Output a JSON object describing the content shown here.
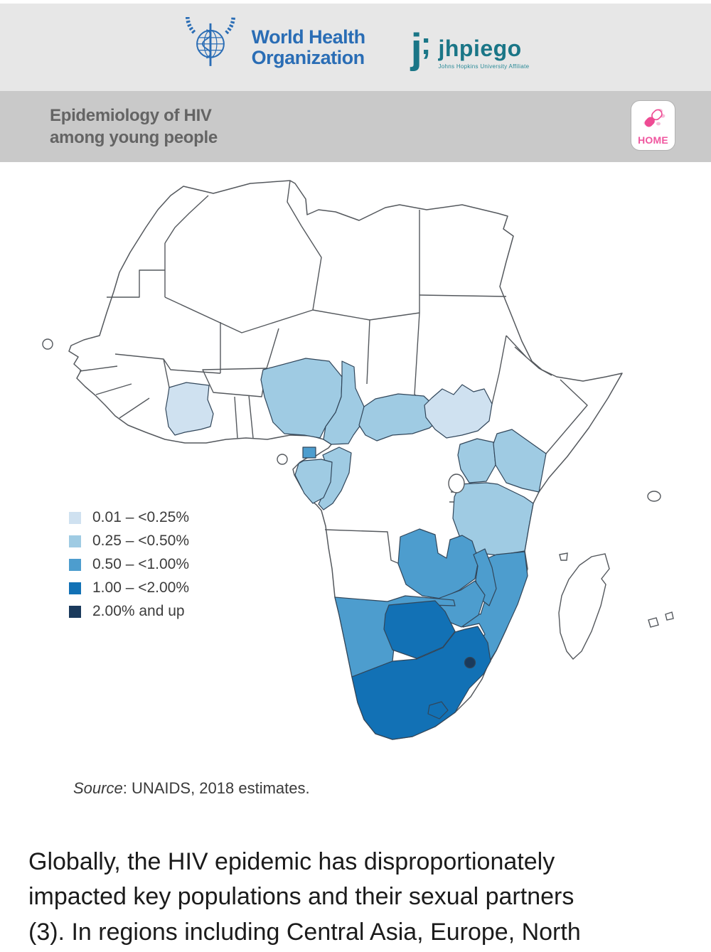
{
  "header": {
    "who_logo": {
      "line1": "World Health",
      "line2": "Organization"
    },
    "jhpiego_logo": {
      "mark": "j",
      "mark_semi": ";",
      "name": "jhpiego",
      "tagline": "Johns Hopkins University Affiliate"
    }
  },
  "banner": {
    "title_line1": "Epidemiology of HIV",
    "title_line2": "among young people",
    "home_button": "HOME"
  },
  "map": {
    "legend": [
      {
        "category": 1,
        "label": "0.01 – <0.25%",
        "color": "#cfe1f0"
      },
      {
        "category": 2,
        "label": "0.25 – <0.50%",
        "color": "#9fcbe3"
      },
      {
        "category": 3,
        "label": "0.50 – <1.00%",
        "color": "#4d9dce"
      },
      {
        "category": 4,
        "label": "1.00 – <2.00%",
        "color": "#1271b5"
      },
      {
        "category": 5,
        "label": "2.00% and up",
        "color": "#1a3a5c"
      }
    ],
    "country_categories": {
      "cote-divoire": 1,
      "south-sudan": 1,
      "nigeria": 2,
      "cameroon": 2,
      "central-african-republic": 2,
      "gabon": 2,
      "congo": 2,
      "uganda": 2,
      "kenya": 2,
      "tanzania": 2,
      "equatorial-guinea": 3,
      "zambia": 3,
      "malawi": 3,
      "mozambique": 3,
      "zimbabwe": 3,
      "namibia": 3,
      "botswana": 4,
      "south-africa": 4,
      "eswatini": 5
    },
    "source_label": "Source",
    "source_rest": ": UNAIDS, 2018 estimates."
  },
  "paragraph": {
    "lines": [
      "Globally, the HIV epidemic has disproportionately",
      "impacted key populations and their sexual partners",
      "(3). In regions including Central Asia, Europe, North"
    ]
  },
  "chart_data": {
    "type": "heatmap",
    "subtype": "choropleth-map-of-africa",
    "title": "Epidemiology of HIV among young people",
    "legend_position": "left",
    "categories": [
      "0.01 – <0.25%",
      "0.25 – <0.50%",
      "0.50 – <1.00%",
      "1.00 – <2.00%",
      "2.00% and up"
    ],
    "category_colors": [
      "#cfe1f0",
      "#9fcbe3",
      "#4d9dce",
      "#1271b5",
      "#1a3a5c"
    ],
    "series": [
      {
        "name": "0.01 – <0.25%",
        "values": [
          "Cote d'Ivoire",
          "South Sudan"
        ]
      },
      {
        "name": "0.25 – <0.50%",
        "values": [
          "Nigeria",
          "Cameroon",
          "Central African Republic",
          "Gabon",
          "Congo",
          "Uganda",
          "Kenya",
          "Tanzania"
        ]
      },
      {
        "name": "0.50 – <1.00%",
        "values": [
          "Equatorial Guinea",
          "Zambia",
          "Malawi",
          "Mozambique",
          "Zimbabwe",
          "Namibia"
        ]
      },
      {
        "name": "1.00 – <2.00%",
        "values": [
          "Botswana",
          "South Africa"
        ]
      },
      {
        "name": "2.00% and up",
        "values": [
          "Eswatini"
        ]
      }
    ],
    "source": "Source: UNAIDS, 2018 estimates."
  }
}
